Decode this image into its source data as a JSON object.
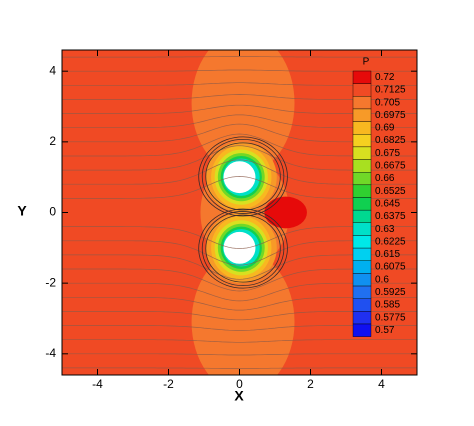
{
  "chart_data": {
    "type": "contour",
    "x_label": "X",
    "y_label": "Y",
    "xlim": [
      -5,
      5
    ],
    "ylim": [
      -4.6,
      4.6
    ],
    "xticks": [
      -4,
      -2,
      0,
      2,
      4
    ],
    "yticks": [
      -4,
      -2,
      0,
      2,
      4
    ],
    "colorbar": {
      "title": "P",
      "levels": [
        0.72,
        0.7125,
        0.705,
        0.6975,
        0.69,
        0.6825,
        0.675,
        0.6675,
        0.66,
        0.6525,
        0.645,
        0.6375,
        0.63,
        0.6225,
        0.615,
        0.6075,
        0.6,
        0.5925,
        0.585,
        0.5775,
        0.57
      ],
      "colors": [
        "#e60a0a",
        "#f04a24",
        "#f5782e",
        "#f79a28",
        "#f8b820",
        "#f5d020",
        "#d8e020",
        "#a8e020",
        "#70d828",
        "#30d030",
        "#10d050",
        "#00d890",
        "#00e0c8",
        "#00e8e8",
        "#00d0f0",
        "#00b0f0",
        "#1090f0",
        "#2070f0",
        "#2050f0",
        "#2030f0",
        "#1010f0"
      ]
    }
  }
}
